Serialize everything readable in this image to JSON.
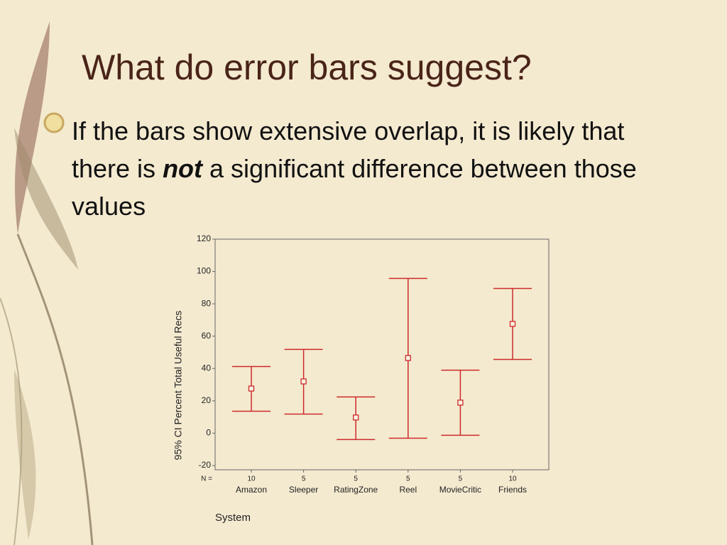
{
  "slide": {
    "title": "What do error bars suggest?",
    "bullet": {
      "before": "If the bars show extensive overlap, it is likely that there is ",
      "emphasis": "not",
      "after": " a significant difference between those values"
    }
  },
  "chart_data": {
    "type": "errorbar",
    "y_label": "95% CI Percent Total Useful Recs",
    "x_label": "System",
    "n_label": "N =",
    "categories": [
      "Amazon",
      "Sleeper",
      "RatingZone",
      "Reel",
      "MovieCritic",
      "Friends"
    ],
    "n": [
      10,
      5,
      5,
      5,
      5,
      10
    ],
    "values": [
      27.6,
      32,
      9.7,
      46.5,
      18.9,
      67.6
    ],
    "lower": [
      13.6,
      11.8,
      -3.9,
      -3.1,
      -1.3,
      45.6
    ],
    "upper": [
      41.2,
      51.8,
      22.4,
      95.7,
      39,
      89.5
    ],
    "color": "#cc2a2a",
    "ylim": [
      -20,
      120
    ],
    "yticks": [
      -20,
      0,
      20,
      40,
      60,
      80,
      100,
      120
    ]
  }
}
